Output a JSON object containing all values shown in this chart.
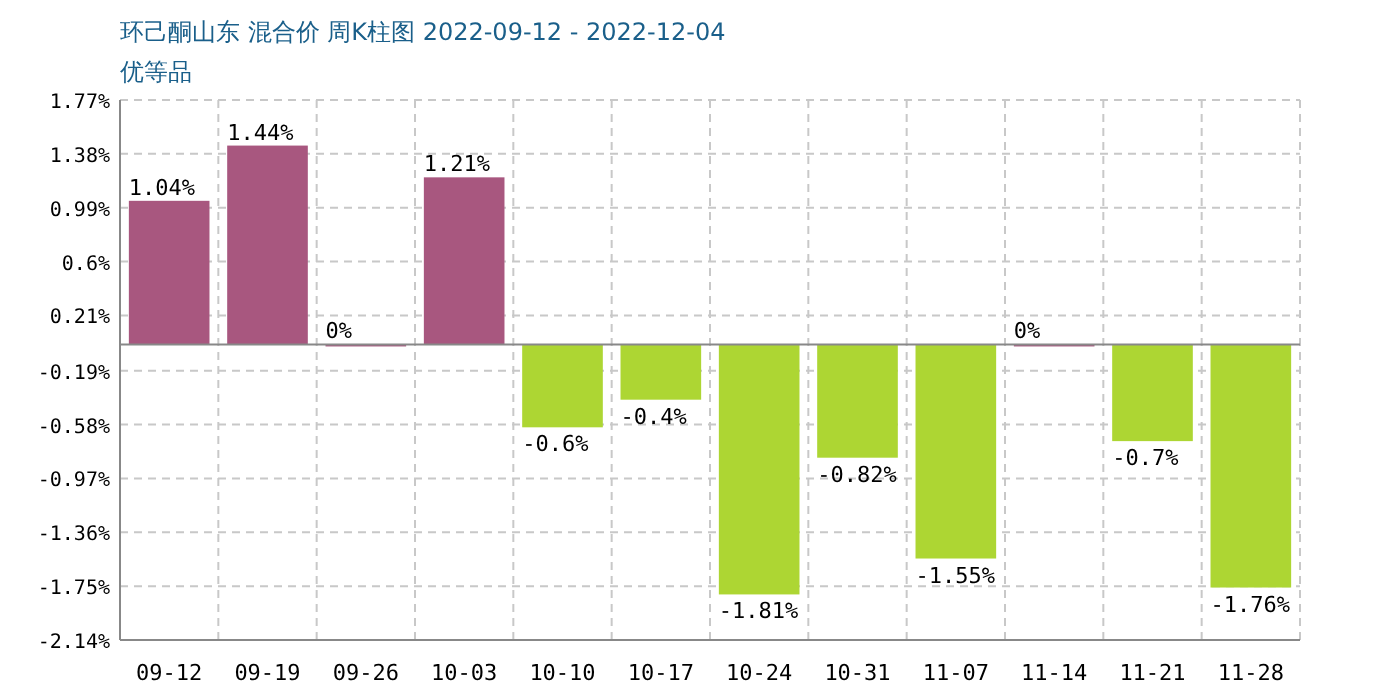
{
  "chart_data": {
    "type": "bar",
    "title": "环己酮山东 混合价 周K柱图 2022-09-12 - 2022-12-04",
    "subtitle": "优等品",
    "categories": [
      "09-12",
      "09-19",
      "09-26",
      "10-03",
      "10-10",
      "10-17",
      "10-24",
      "10-31",
      "11-07",
      "11-14",
      "11-21",
      "11-28"
    ],
    "values": [
      1.04,
      1.44,
      0,
      1.21,
      -0.6,
      -0.4,
      -1.81,
      -0.82,
      -1.55,
      0,
      -0.7,
      -1.76
    ],
    "colors": [
      "#a8577f",
      "#a8577f",
      "#a8577f",
      "#a8577f",
      "#add633",
      "#add633",
      "#add633",
      "#add633",
      "#add633",
      "#a8577f",
      "#add633",
      "#add633"
    ],
    "value_labels": [
      "1.04%",
      "1.44%",
      "0%",
      "1.21%",
      "-0.6%",
      "-0.4%",
      "-1.81%",
      "-0.82%",
      "-1.55%",
      "0%",
      "-0.7%",
      "-1.76%"
    ],
    "ylim": [
      -2.14,
      1.77
    ],
    "yticks": [
      {
        "value": 1.77,
        "label": "1.77%"
      },
      {
        "value": 1.38,
        "label": "1.38%"
      },
      {
        "value": 0.99,
        "label": "0.99%"
      },
      {
        "value": 0.6,
        "label": "0.6%"
      },
      {
        "value": 0.21,
        "label": "0.21%"
      },
      {
        "value": -0.19,
        "label": "-0.19%"
      },
      {
        "value": -0.58,
        "label": "-0.58%"
      },
      {
        "value": -0.97,
        "label": "-0.97%"
      },
      {
        "value": -1.36,
        "label": "-1.36%"
      },
      {
        "value": -1.75,
        "label": "-1.75%"
      },
      {
        "value": -2.14,
        "label": "-2.14%"
      }
    ],
    "grid": true
  }
}
